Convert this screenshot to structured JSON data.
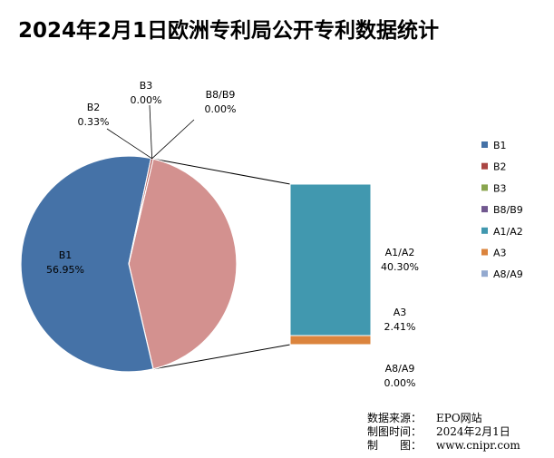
{
  "chart_data": {
    "type": "pie",
    "subtype": "bar-of-pie",
    "title": "2024年2月1日欧洲专利局公开专利数据统计",
    "categories": [
      "B1",
      "B2",
      "B3",
      "B8/B9",
      "A1/A2",
      "A3",
      "A8/A9"
    ],
    "values": [
      56.95,
      0.33,
      0.0,
      0.0,
      40.3,
      2.41,
      0.0
    ],
    "labels": [
      "56.95%",
      "0.33%",
      "0.00%",
      "0.00%",
      "40.30%",
      "2.41%",
      "0.00%"
    ],
    "pie_categories": [
      "B1",
      "B2",
      "B3",
      "B8/B9"
    ],
    "bar_categories": [
      "A1/A2",
      "A3",
      "A8/A9"
    ],
    "colors": [
      "#4572A7",
      "#AA4643",
      "#89A54E",
      "#71588F",
      "#4198AF",
      "#DB843D",
      "#93A9CF"
    ],
    "legend_position": "right"
  },
  "source": {
    "data_source_label": "数据来源：",
    "data_source_value": "EPO网站",
    "chart_time_label": "制图时间：",
    "chart_time_value": "2024年2月1日",
    "maker_label": "制　　图：",
    "maker_value": "www.cnipr.com"
  }
}
